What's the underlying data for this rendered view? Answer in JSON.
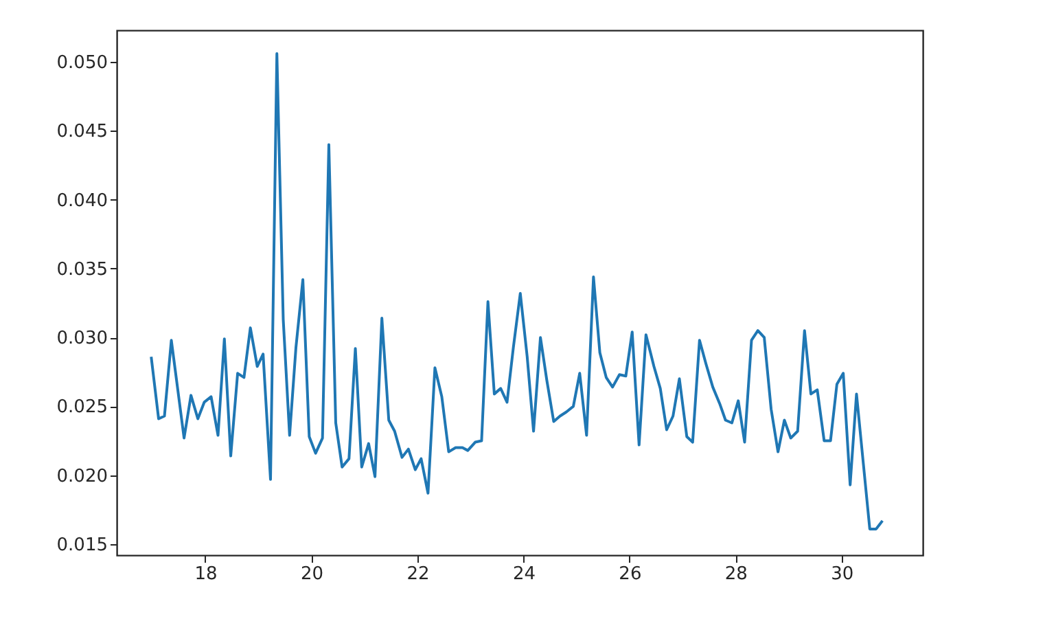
{
  "chart_data": {
    "type": "line",
    "x": [
      16.98,
      17.12,
      17.23,
      17.36,
      17.6,
      17.73,
      17.86,
      17.98,
      18.11,
      18.24,
      18.36,
      18.48,
      18.61,
      18.73,
      18.85,
      18.98,
      19.09,
      19.23,
      19.35,
      19.47,
      19.59,
      19.71,
      19.84,
      19.96,
      20.08,
      20.21,
      20.33,
      20.46,
      20.58,
      20.71,
      20.83,
      20.95,
      21.08,
      21.2,
      21.33,
      21.46,
      21.57,
      21.71,
      21.83,
      21.96,
      22.07,
      22.2,
      22.33,
      22.46,
      22.59,
      22.72,
      22.85,
      22.95,
      23.09,
      23.21,
      23.33,
      23.45,
      23.57,
      23.69,
      23.81,
      23.94,
      24.07,
      24.19,
      24.32,
      24.44,
      24.57,
      24.69,
      24.81,
      24.94,
      25.06,
      25.19,
      25.32,
      25.44,
      25.56,
      25.68,
      25.81,
      25.93,
      26.05,
      26.18,
      26.31,
      26.46,
      26.58,
      26.7,
      26.82,
      26.94,
      27.08,
      27.19,
      27.32,
      27.44,
      27.57,
      27.7,
      27.81,
      27.93,
      28.05,
      28.17,
      28.3,
      28.42,
      28.54,
      28.67,
      28.8,
      28.92,
      29.04,
      29.17,
      29.3,
      29.42,
      29.54,
      29.67,
      29.79,
      29.91,
      30.03,
      30.16,
      30.28,
      30.41,
      30.53,
      30.65,
      30.77
    ],
    "series": [
      {
        "color": "#1f77b4",
        "values": [
          0.0286,
          0.0241,
          0.0243,
          0.0298,
          0.0227,
          0.0258,
          0.0241,
          0.0253,
          0.0257,
          0.0229,
          0.0299,
          0.0214,
          0.0274,
          0.0271,
          0.0307,
          0.0279,
          0.0288,
          0.0197,
          0.0506,
          0.0313,
          0.0229,
          0.0293,
          0.0342,
          0.0228,
          0.0216,
          0.0227,
          0.044,
          0.0238,
          0.0206,
          0.0212,
          0.0292,
          0.0206,
          0.0223,
          0.0199,
          0.0314,
          0.024,
          0.0232,
          0.0213,
          0.0219,
          0.0204,
          0.0212,
          0.0187,
          0.0278,
          0.0257,
          0.0217,
          0.022,
          0.022,
          0.0218,
          0.0224,
          0.0225,
          0.0326,
          0.0259,
          0.0263,
          0.0253,
          0.0293,
          0.0332,
          0.0286,
          0.0232,
          0.03,
          0.0269,
          0.0239,
          0.0243,
          0.0246,
          0.025,
          0.0274,
          0.0229,
          0.0344,
          0.0289,
          0.0271,
          0.0264,
          0.0273,
          0.0272,
          0.0304,
          0.0222,
          0.0302,
          0.0279,
          0.0263,
          0.0233,
          0.0243,
          0.027,
          0.0228,
          0.0224,
          0.0298,
          0.0281,
          0.0264,
          0.0252,
          0.024,
          0.0238,
          0.0254,
          0.0224,
          0.0298,
          0.0305,
          0.03,
          0.0248,
          0.0217,
          0.024,
          0.0227,
          0.0232,
          0.0305,
          0.0259,
          0.0262,
          0.0225,
          0.0225,
          0.0266,
          0.0274,
          0.0193,
          0.0259,
          0.0208,
          0.0161,
          0.0161,
          0.0167
        ]
      }
    ],
    "xlim": [
      16.33,
      31.53
    ],
    "ylim": [
      0.0142,
      0.0523
    ],
    "xticks": [
      18,
      20,
      22,
      24,
      26,
      28,
      30
    ],
    "yticks": [
      {
        "value": 0.015,
        "label": "0.015"
      },
      {
        "value": 0.02,
        "label": "0.020"
      },
      {
        "value": 0.025,
        "label": "0.025"
      },
      {
        "value": 0.03,
        "label": "0.030"
      },
      {
        "value": 0.035,
        "label": "0.035"
      },
      {
        "value": 0.04,
        "label": "0.040"
      },
      {
        "value": 0.045,
        "label": "0.045"
      },
      {
        "value": 0.05,
        "label": "0.050"
      }
    ],
    "grid": false,
    "line_style": "solid"
  }
}
